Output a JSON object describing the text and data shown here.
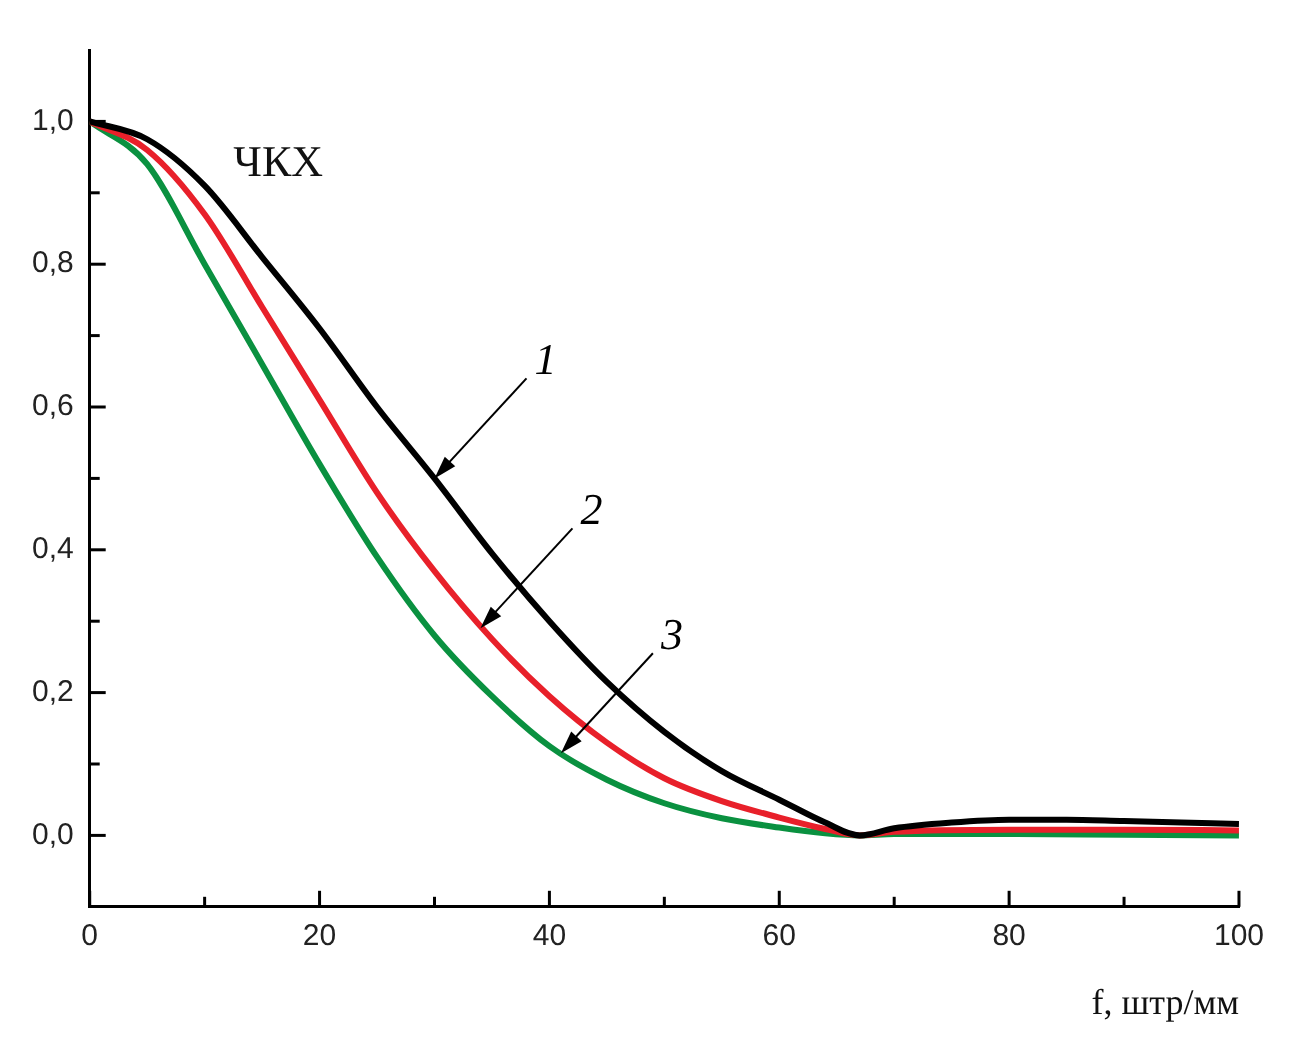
{
  "chart_data": {
    "type": "line",
    "xlabel": "f, штр/мм",
    "annotations": [
      "ЧКХ",
      {
        "text": "1",
        "x": 30,
        "y": 0.5
      },
      {
        "text": "2",
        "x": 34,
        "y": 0.29
      },
      {
        "text": "3",
        "x": 41,
        "y": 0.115
      }
    ],
    "series": [
      {
        "color": "#000000",
        "x": [
          0,
          5,
          10,
          15,
          20,
          25,
          30,
          35,
          40,
          45,
          50,
          55,
          60,
          64,
          67,
          70,
          75,
          80,
          85,
          90,
          95,
          100
        ],
        "values": [
          1,
          0.975,
          0.91,
          0.81,
          0.71,
          0.6,
          0.5,
          0.395,
          0.3,
          0.215,
          0.145,
          0.09,
          0.05,
          0.018,
          0,
          0.01,
          0.018,
          0.022,
          0.022,
          0.02,
          0.018,
          0.016
        ]
      },
      {
        "color": "#e8202a",
        "x": [
          0,
          5,
          10,
          15,
          20,
          25,
          30,
          35,
          40,
          45,
          50,
          55,
          60,
          64,
          67,
          70,
          80,
          90,
          100
        ],
        "values": [
          1,
          0.96,
          0.87,
          0.74,
          0.61,
          0.48,
          0.37,
          0.275,
          0.195,
          0.13,
          0.08,
          0.048,
          0.025,
          0.009,
          0,
          0.005,
          0.008,
          0.008,
          0.007
        ]
      },
      {
        "color": "#0a9140",
        "x": [
          0,
          5,
          10,
          15,
          20,
          25,
          30,
          35,
          40,
          45,
          50,
          55,
          60,
          64,
          67,
          70,
          80,
          90,
          100
        ],
        "values": [
          1,
          0.94,
          0.8,
          0.66,
          0.52,
          0.39,
          0.28,
          0.195,
          0.125,
          0.078,
          0.045,
          0.024,
          0.011,
          0.003,
          0,
          0.002,
          0.002,
          0.001,
          0
        ]
      }
    ],
    "xlim": [
      0,
      100
    ],
    "xticks": [
      0,
      {
        "value": 10,
        "label": null
      },
      20,
      {
        "value": 30,
        "label": null
      },
      40,
      {
        "value": 50,
        "label": null
      },
      60,
      {
        "value": 70,
        "label": null
      },
      80,
      {
        "value": 90,
        "label": null
      },
      100
    ],
    "ylim": [
      -0.1,
      1.1
    ],
    "yticks": [
      {
        "value": 0,
        "label": "0,0"
      },
      {
        "value": 0.1,
        "label": null
      },
      {
        "value": 0.2,
        "label": "0,2"
      },
      {
        "value": 0.3,
        "label": null
      },
      {
        "value": 0.4,
        "label": "0,4"
      },
      {
        "value": 0.5,
        "label": null
      },
      {
        "value": 0.6,
        "label": "0,6"
      },
      {
        "value": 0.7,
        "label": null
      },
      {
        "value": 0.8,
        "label": "0,8"
      },
      {
        "value": 0.9,
        "label": null
      },
      {
        "value": 1,
        "label": "1,0"
      }
    ],
    "grid": false,
    "legend": false,
    "marker": "none",
    "line_style": "solid"
  }
}
